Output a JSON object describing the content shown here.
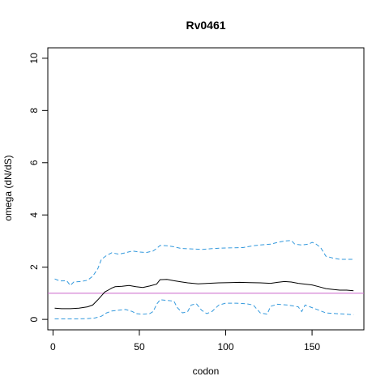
{
  "chart_data": {
    "type": "line",
    "title": "Rv0461",
    "xlabel": "codon",
    "ylabel": "omega (dN/dS)",
    "xlim": [
      -3,
      180
    ],
    "ylim": [
      -0.4,
      10.4
    ],
    "xticks": [
      0,
      50,
      100,
      150
    ],
    "yticks": [
      0,
      2,
      4,
      6,
      8,
      10
    ],
    "reference_line": {
      "y": 1,
      "color": "#cc66cc"
    },
    "grid": false,
    "series": [
      {
        "role": "omega",
        "style": "solid",
        "color": "#000000",
        "points": [
          [
            1,
            0.43
          ],
          [
            5,
            0.41
          ],
          [
            10,
            0.41
          ],
          [
            15,
            0.43
          ],
          [
            20,
            0.48
          ],
          [
            23,
            0.55
          ],
          [
            26,
            0.75
          ],
          [
            28,
            0.9
          ],
          [
            30,
            1.05
          ],
          [
            32,
            1.12
          ],
          [
            34,
            1.2
          ],
          [
            36,
            1.25
          ],
          [
            40,
            1.27
          ],
          [
            44,
            1.3
          ],
          [
            48,
            1.25
          ],
          [
            52,
            1.22
          ],
          [
            56,
            1.28
          ],
          [
            60,
            1.35
          ],
          [
            62,
            1.52
          ],
          [
            66,
            1.53
          ],
          [
            70,
            1.48
          ],
          [
            74,
            1.44
          ],
          [
            78,
            1.4
          ],
          [
            84,
            1.36
          ],
          [
            90,
            1.38
          ],
          [
            96,
            1.4
          ],
          [
            102,
            1.41
          ],
          [
            108,
            1.42
          ],
          [
            114,
            1.41
          ],
          [
            120,
            1.4
          ],
          [
            126,
            1.38
          ],
          [
            130,
            1.42
          ],
          [
            134,
            1.45
          ],
          [
            138,
            1.43
          ],
          [
            142,
            1.38
          ],
          [
            146,
            1.35
          ],
          [
            150,
            1.32
          ],
          [
            154,
            1.25
          ],
          [
            158,
            1.18
          ],
          [
            162,
            1.15
          ],
          [
            166,
            1.12
          ],
          [
            170,
            1.12
          ],
          [
            174,
            1.1
          ]
        ]
      },
      {
        "role": "upper-bound",
        "style": "dashed",
        "color": "#3399dd",
        "points": [
          [
            1,
            1.55
          ],
          [
            4,
            1.47
          ],
          [
            8,
            1.48
          ],
          [
            10,
            1.3
          ],
          [
            12,
            1.43
          ],
          [
            16,
            1.45
          ],
          [
            20,
            1.5
          ],
          [
            23,
            1.65
          ],
          [
            26,
            1.95
          ],
          [
            28,
            2.3
          ],
          [
            31,
            2.45
          ],
          [
            34,
            2.55
          ],
          [
            38,
            2.5
          ],
          [
            42,
            2.55
          ],
          [
            46,
            2.62
          ],
          [
            50,
            2.58
          ],
          [
            54,
            2.56
          ],
          [
            58,
            2.62
          ],
          [
            60,
            2.72
          ],
          [
            62,
            2.83
          ],
          [
            66,
            2.82
          ],
          [
            70,
            2.78
          ],
          [
            74,
            2.72
          ],
          [
            80,
            2.7
          ],
          [
            86,
            2.68
          ],
          [
            92,
            2.71
          ],
          [
            98,
            2.73
          ],
          [
            104,
            2.74
          ],
          [
            110,
            2.75
          ],
          [
            116,
            2.82
          ],
          [
            120,
            2.85
          ],
          [
            126,
            2.88
          ],
          [
            130,
            2.95
          ],
          [
            134,
            3.0
          ],
          [
            138,
            3.02
          ],
          [
            140,
            2.88
          ],
          [
            144,
            2.85
          ],
          [
            148,
            2.88
          ],
          [
            150,
            2.95
          ],
          [
            152,
            2.9
          ],
          [
            155,
            2.75
          ],
          [
            158,
            2.42
          ],
          [
            162,
            2.35
          ],
          [
            166,
            2.3
          ],
          [
            170,
            2.3
          ],
          [
            174,
            2.3
          ]
        ]
      },
      {
        "role": "lower-bound",
        "style": "dashed",
        "color": "#3399dd",
        "points": [
          [
            1,
            0.02
          ],
          [
            5,
            0.02
          ],
          [
            10,
            0.02
          ],
          [
            15,
            0.02
          ],
          [
            20,
            0.03
          ],
          [
            24,
            0.05
          ],
          [
            28,
            0.12
          ],
          [
            31,
            0.25
          ],
          [
            34,
            0.32
          ],
          [
            38,
            0.35
          ],
          [
            42,
            0.38
          ],
          [
            46,
            0.3
          ],
          [
            48,
            0.22
          ],
          [
            52,
            0.2
          ],
          [
            56,
            0.22
          ],
          [
            58,
            0.3
          ],
          [
            60,
            0.58
          ],
          [
            62,
            0.75
          ],
          [
            66,
            0.73
          ],
          [
            70,
            0.7
          ],
          [
            72,
            0.45
          ],
          [
            75,
            0.25
          ],
          [
            78,
            0.3
          ],
          [
            80,
            0.55
          ],
          [
            83,
            0.6
          ],
          [
            86,
            0.35
          ],
          [
            89,
            0.22
          ],
          [
            92,
            0.3
          ],
          [
            96,
            0.55
          ],
          [
            100,
            0.62
          ],
          [
            106,
            0.62
          ],
          [
            112,
            0.6
          ],
          [
            116,
            0.55
          ],
          [
            120,
            0.25
          ],
          [
            124,
            0.2
          ],
          [
            126,
            0.5
          ],
          [
            130,
            0.58
          ],
          [
            136,
            0.55
          ],
          [
            142,
            0.48
          ],
          [
            144,
            0.3
          ],
          [
            146,
            0.55
          ],
          [
            150,
            0.45
          ],
          [
            154,
            0.35
          ],
          [
            158,
            0.25
          ],
          [
            164,
            0.22
          ],
          [
            170,
            0.2
          ],
          [
            174,
            0.18
          ]
        ]
      }
    ]
  }
}
